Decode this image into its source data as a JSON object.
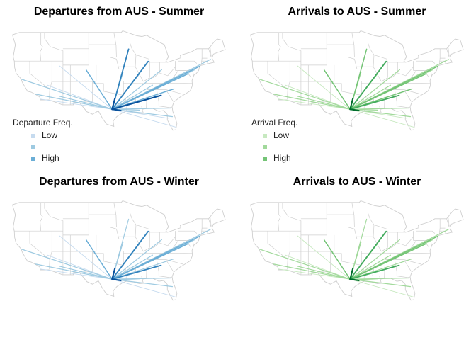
{
  "hub": "AUS",
  "state_fill": "#ffffff",
  "state_border": "#cfcfcf",
  "panels": [
    {
      "title": "Departures from AUS - Summer",
      "palette": [
        "#c6dbef",
        "#9ecae1",
        "#6baed6",
        "#3182bd",
        "#08519c"
      ],
      "legend": {
        "title": "Departure Freq.",
        "items": [
          {
            "label": "Low",
            "color": "#c6dbef"
          },
          {
            "label": "",
            "color": "#9ecae1"
          },
          {
            "label": "High",
            "color": "#6baed6"
          }
        ]
      },
      "routes": [
        {
          "lon": -122.4,
          "lat": 37.6,
          "freq": 2
        },
        {
          "lon": -118.4,
          "lat": 33.9,
          "freq": 2
        },
        {
          "lon": -117.2,
          "lat": 32.7,
          "freq": 1
        },
        {
          "lon": -112.0,
          "lat": 33.4,
          "freq": 2
        },
        {
          "lon": -115.2,
          "lat": 36.1,
          "freq": 1
        },
        {
          "lon": -111.9,
          "lat": 40.8,
          "freq": 1
        },
        {
          "lon": -104.7,
          "lat": 39.8,
          "freq": 3
        },
        {
          "lon": -93.2,
          "lat": 44.9,
          "freq": 4
        },
        {
          "lon": -87.9,
          "lat": 41.9,
          "freq": 4
        },
        {
          "lon": -90.4,
          "lat": 38.7,
          "freq": 2
        },
        {
          "lon": -86.7,
          "lat": 36.1,
          "freq": 2
        },
        {
          "lon": -84.4,
          "lat": 33.6,
          "freq": 5
        },
        {
          "lon": -81.7,
          "lat": 30.5,
          "freq": 2
        },
        {
          "lon": -81.3,
          "lat": 28.4,
          "freq": 2
        },
        {
          "lon": -80.3,
          "lat": 25.8,
          "freq": 1
        },
        {
          "lon": -82.5,
          "lat": 28.0,
          "freq": 1
        },
        {
          "lon": -80.9,
          "lat": 35.2,
          "freq": 3
        },
        {
          "lon": -77.0,
          "lat": 38.9,
          "freq": 3
        },
        {
          "lon": -75.2,
          "lat": 39.9,
          "freq": 2
        },
        {
          "lon": -74.0,
          "lat": 40.7,
          "freq": 3
        },
        {
          "lon": -71.0,
          "lat": 42.4,
          "freq": 2
        },
        {
          "lon": -84.2,
          "lat": 39.9,
          "freq": 2
        },
        {
          "lon": -96.9,
          "lat": 32.9,
          "freq": 5
        },
        {
          "lon": -95.3,
          "lat": 29.9,
          "freq": 5
        },
        {
          "lon": -90.2,
          "lat": 30.0,
          "freq": 2
        },
        {
          "lon": -94.7,
          "lat": 39.3,
          "freq": 2
        }
      ]
    },
    {
      "title": "Arrivals to AUS - Summer",
      "palette": [
        "#c7e9c0",
        "#a1d99b",
        "#74c476",
        "#41ab5d",
        "#006d2c"
      ],
      "legend": {
        "title": "Arrival Freq.",
        "items": [
          {
            "label": "Low",
            "color": "#c7e9c0"
          },
          {
            "label": "",
            "color": "#a1d99b"
          },
          {
            "label": "High",
            "color": "#74c476"
          }
        ]
      },
      "routes": [
        {
          "lon": -122.4,
          "lat": 37.6,
          "freq": 2
        },
        {
          "lon": -118.4,
          "lat": 33.9,
          "freq": 2
        },
        {
          "lon": -117.2,
          "lat": 32.7,
          "freq": 1
        },
        {
          "lon": -112.0,
          "lat": 33.4,
          "freq": 2
        },
        {
          "lon": -115.2,
          "lat": 36.1,
          "freq": 1
        },
        {
          "lon": -111.9,
          "lat": 40.8,
          "freq": 1
        },
        {
          "lon": -104.7,
          "lat": 39.8,
          "freq": 3
        },
        {
          "lon": -93.2,
          "lat": 44.9,
          "freq": 3
        },
        {
          "lon": -87.9,
          "lat": 41.9,
          "freq": 4
        },
        {
          "lon": -90.4,
          "lat": 38.7,
          "freq": 2
        },
        {
          "lon": -86.7,
          "lat": 36.1,
          "freq": 2
        },
        {
          "lon": -84.4,
          "lat": 33.6,
          "freq": 4
        },
        {
          "lon": -81.7,
          "lat": 30.5,
          "freq": 2
        },
        {
          "lon": -81.3,
          "lat": 28.4,
          "freq": 2
        },
        {
          "lon": -80.3,
          "lat": 25.8,
          "freq": 1
        },
        {
          "lon": -82.5,
          "lat": 28.0,
          "freq": 1
        },
        {
          "lon": -80.9,
          "lat": 35.2,
          "freq": 3
        },
        {
          "lon": -77.0,
          "lat": 38.9,
          "freq": 3
        },
        {
          "lon": -75.2,
          "lat": 39.9,
          "freq": 2
        },
        {
          "lon": -74.0,
          "lat": 40.7,
          "freq": 3
        },
        {
          "lon": -71.0,
          "lat": 42.4,
          "freq": 2
        },
        {
          "lon": -84.2,
          "lat": 39.9,
          "freq": 2
        },
        {
          "lon": -96.9,
          "lat": 32.9,
          "freq": 5
        },
        {
          "lon": -95.3,
          "lat": 29.9,
          "freq": 5
        },
        {
          "lon": -90.2,
          "lat": 30.0,
          "freq": 2
        },
        {
          "lon": -94.7,
          "lat": 39.3,
          "freq": 2
        }
      ]
    },
    {
      "title": "Departures from AUS - Winter",
      "palette": [
        "#c6dbef",
        "#9ecae1",
        "#6baed6",
        "#3182bd",
        "#08519c"
      ],
      "legend": null,
      "routes": [
        {
          "lon": -122.4,
          "lat": 37.6,
          "freq": 2
        },
        {
          "lon": -118.4,
          "lat": 33.9,
          "freq": 2
        },
        {
          "lon": -117.2,
          "lat": 32.7,
          "freq": 1
        },
        {
          "lon": -112.0,
          "lat": 33.4,
          "freq": 2
        },
        {
          "lon": -115.2,
          "lat": 36.1,
          "freq": 1
        },
        {
          "lon": -111.9,
          "lat": 40.8,
          "freq": 1
        },
        {
          "lon": -104.7,
          "lat": 39.8,
          "freq": 3
        },
        {
          "lon": -93.2,
          "lat": 44.9,
          "freq": 2
        },
        {
          "lon": -87.9,
          "lat": 41.9,
          "freq": 4
        },
        {
          "lon": -90.4,
          "lat": 38.7,
          "freq": 2
        },
        {
          "lon": -86.7,
          "lat": 36.1,
          "freq": 2
        },
        {
          "lon": -84.4,
          "lat": 33.6,
          "freq": 4
        },
        {
          "lon": -81.7,
          "lat": 30.5,
          "freq": 2
        },
        {
          "lon": -81.3,
          "lat": 28.4,
          "freq": 2
        },
        {
          "lon": -80.3,
          "lat": 25.8,
          "freq": 1
        },
        {
          "lon": -80.9,
          "lat": 35.2,
          "freq": 2
        },
        {
          "lon": -77.0,
          "lat": 38.9,
          "freq": 3
        },
        {
          "lon": -75.2,
          "lat": 39.9,
          "freq": 2
        },
        {
          "lon": -74.0,
          "lat": 40.7,
          "freq": 3
        },
        {
          "lon": -71.0,
          "lat": 42.4,
          "freq": 2
        },
        {
          "lon": -84.2,
          "lat": 39.9,
          "freq": 2
        },
        {
          "lon": -96.9,
          "lat": 32.9,
          "freq": 5
        },
        {
          "lon": -95.3,
          "lat": 29.9,
          "freq": 5
        },
        {
          "lon": -90.2,
          "lat": 30.0,
          "freq": 2
        },
        {
          "lon": -94.7,
          "lat": 39.3,
          "freq": 2
        }
      ]
    },
    {
      "title": "Arrivals to AUS - Winter",
      "palette": [
        "#c7e9c0",
        "#a1d99b",
        "#74c476",
        "#41ab5d",
        "#006d2c"
      ],
      "legend": null,
      "routes": [
        {
          "lon": -122.4,
          "lat": 37.6,
          "freq": 2
        },
        {
          "lon": -118.4,
          "lat": 33.9,
          "freq": 2
        },
        {
          "lon": -117.2,
          "lat": 32.7,
          "freq": 1
        },
        {
          "lon": -112.0,
          "lat": 33.4,
          "freq": 2
        },
        {
          "lon": -115.2,
          "lat": 36.1,
          "freq": 1
        },
        {
          "lon": -111.9,
          "lat": 40.8,
          "freq": 1
        },
        {
          "lon": -104.7,
          "lat": 39.8,
          "freq": 3
        },
        {
          "lon": -93.2,
          "lat": 44.9,
          "freq": 2
        },
        {
          "lon": -87.9,
          "lat": 41.9,
          "freq": 4
        },
        {
          "lon": -90.4,
          "lat": 38.7,
          "freq": 2
        },
        {
          "lon": -86.7,
          "lat": 36.1,
          "freq": 2
        },
        {
          "lon": -84.4,
          "lat": 33.6,
          "freq": 4
        },
        {
          "lon": -81.7,
          "lat": 30.5,
          "freq": 2
        },
        {
          "lon": -81.3,
          "lat": 28.4,
          "freq": 2
        },
        {
          "lon": -80.3,
          "lat": 25.8,
          "freq": 1
        },
        {
          "lon": -80.9,
          "lat": 35.2,
          "freq": 2
        },
        {
          "lon": -77.0,
          "lat": 38.9,
          "freq": 3
        },
        {
          "lon": -75.2,
          "lat": 39.9,
          "freq": 2
        },
        {
          "lon": -74.0,
          "lat": 40.7,
          "freq": 3
        },
        {
          "lon": -71.0,
          "lat": 42.4,
          "freq": 2
        },
        {
          "lon": -84.2,
          "lat": 39.9,
          "freq": 2
        },
        {
          "lon": -96.9,
          "lat": 32.9,
          "freq": 5
        },
        {
          "lon": -95.3,
          "lat": 29.9,
          "freq": 5
        },
        {
          "lon": -90.2,
          "lat": 30.0,
          "freq": 2
        },
        {
          "lon": -94.7,
          "lat": 39.3,
          "freq": 2
        }
      ]
    }
  ]
}
